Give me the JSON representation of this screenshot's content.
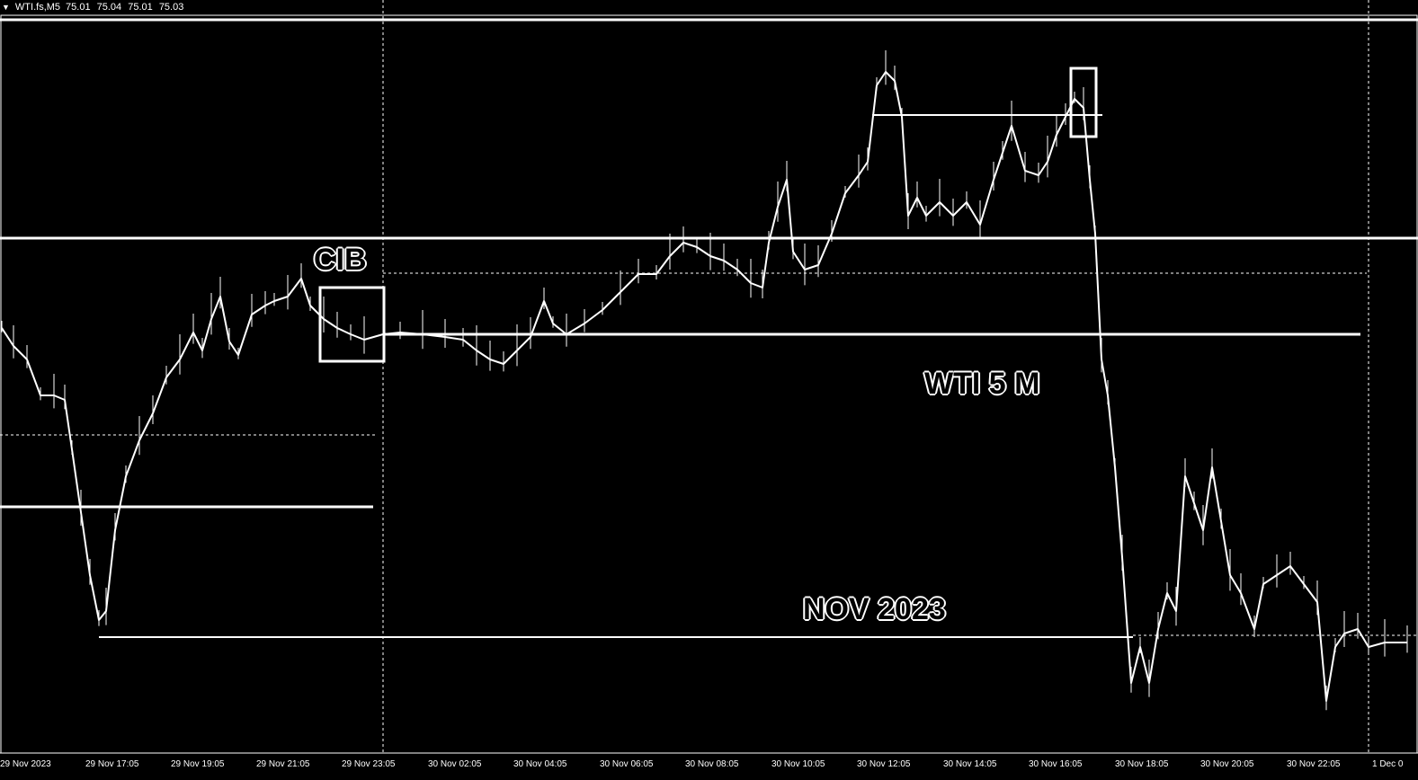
{
  "header": {
    "symbol": "WTI.fs,M5",
    "open": "75.01",
    "high": "75.04",
    "low": "75.01",
    "close": "75.03"
  },
  "annotations": {
    "cib": "CIB",
    "wti": "WTI 5 M",
    "nov": "NOV 2023"
  },
  "x_ticks": [
    "29 Nov 2023",
    "29 Nov 17:05",
    "29 Nov 19:05",
    "29 Nov 21:05",
    "29 Nov 23:05",
    "30 Nov 02:05",
    "30 Nov 04:05",
    "30 Nov 06:05",
    "30 Nov 08:05",
    "30 Nov 10:05",
    "30 Nov 12:05",
    "30 Nov 14:05",
    "30 Nov 16:05",
    "30 Nov 18:05",
    "30 Nov 20:05",
    "30 Nov 22:05",
    "1 Dec 0"
  ],
  "colors": {
    "background": "#000000",
    "foreground": "#ffffff"
  },
  "chart_data": {
    "type": "line",
    "title": "WTI.fs,M5",
    "categories": [
      "29 Nov 2023",
      "29 Nov 17:05",
      "29 Nov 19:05",
      "29 Nov 21:05",
      "29 Nov 23:05",
      "30 Nov 02:05",
      "30 Nov 04:05",
      "30 Nov 06:05",
      "30 Nov 08:05",
      "30 Nov 10:05",
      "30 Nov 12:05",
      "30 Nov 14:05",
      "30 Nov 16:05",
      "30 Nov 18:05",
      "30 Nov 20:05",
      "30 Nov 22:05",
      "1 Dec 0"
    ],
    "series": [
      {
        "values": [
          77.9,
          76.2,
          77.6,
          78.0,
          77.6,
          77.7,
          77.8,
          78.2,
          78.5,
          78.4,
          79.2,
          78.8,
          79.0,
          75.5,
          76.1,
          75.1,
          75.03
        ]
      }
    ],
    "xlabel": "",
    "ylabel": "",
    "grid": false
  }
}
